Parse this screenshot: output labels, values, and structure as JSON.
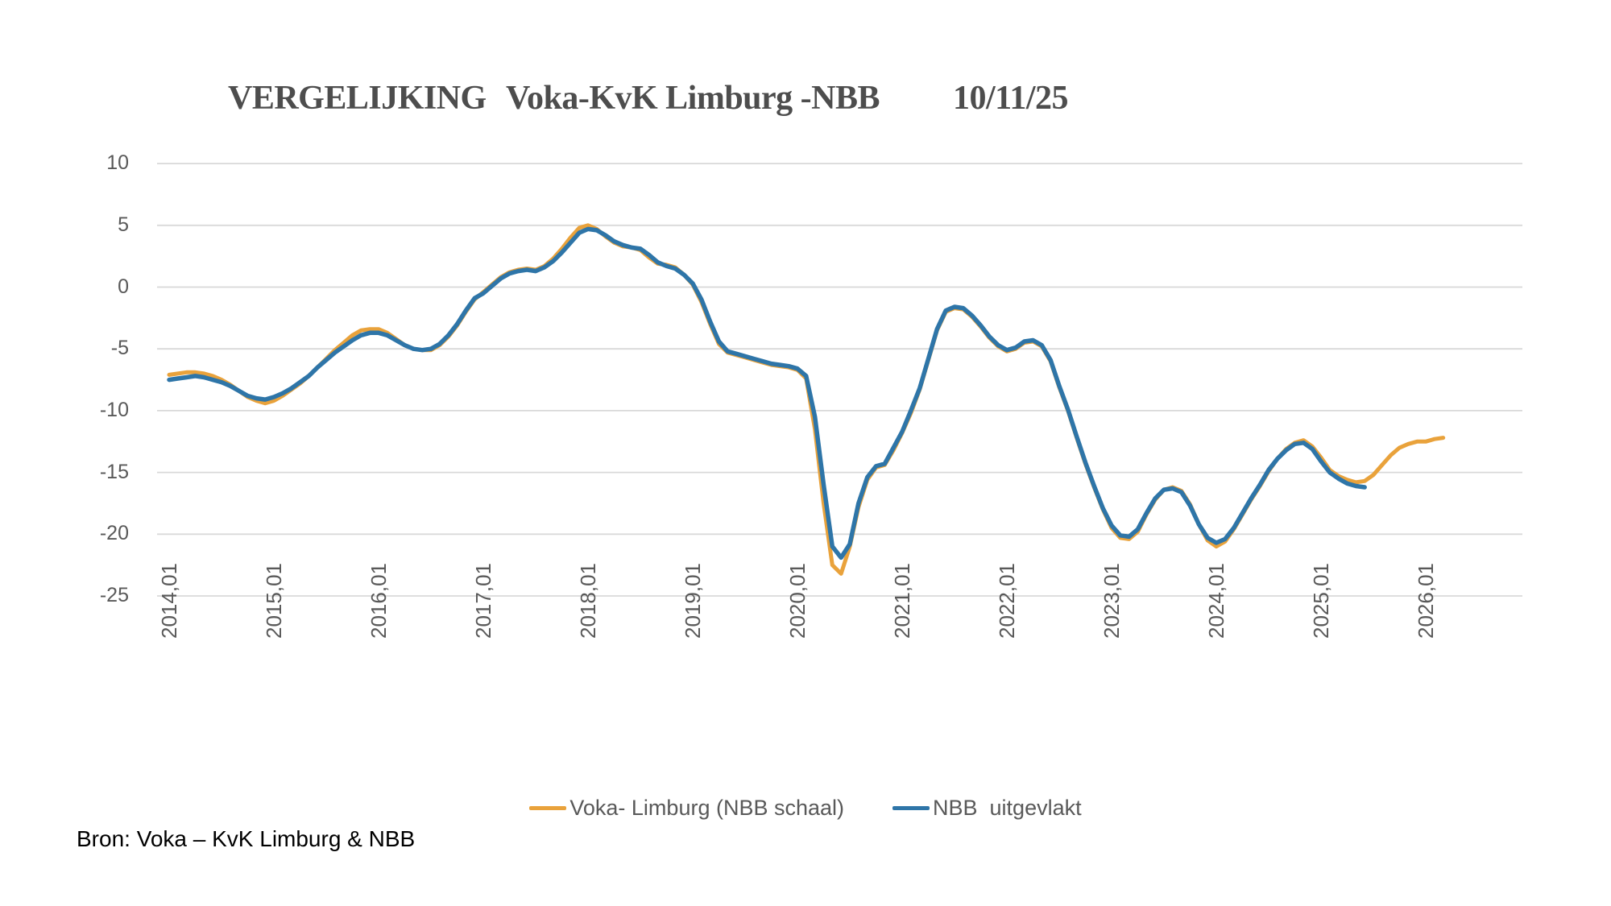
{
  "title": {
    "part1": "VERGELIJKING",
    "part2": "Voka-KvK Limburg -NBB",
    "part3": "10/11/25"
  },
  "source_note": "Bron: Voka – KvK Limburg & NBB",
  "legend": {
    "items": [
      {
        "label": "Voka- Limburg (NBB schaal)",
        "color": "#E9A23B"
      },
      {
        "label": "NBB  uitgevlakt",
        "color": "#2E75A8"
      }
    ]
  },
  "axes": {
    "y_tick_labels": [
      "10",
      "5",
      "0",
      "-5",
      "-10",
      "-15",
      "-20",
      "-25"
    ],
    "y_tick_values": [
      10,
      5,
      0,
      -5,
      -10,
      -15,
      -20,
      -25
    ],
    "x_tick_labels": [
      "2014,01",
      "2015,01",
      "2016,01",
      "2017,01",
      "2018,01",
      "2019,01",
      "2020,01",
      "2021,01",
      "2022,01",
      "2023,01",
      "2024,01",
      "2025,01",
      "2026,01"
    ],
    "x_tick_years": [
      2014,
      2015,
      2016,
      2017,
      2018,
      2019,
      2020,
      2021,
      2022,
      2023,
      2024,
      2025,
      2026
    ]
  },
  "chart_data": {
    "type": "line",
    "title": "VERGELIJKING Voka-KvK Limburg -NBB 10/11/25",
    "xlabel": "",
    "ylabel": "",
    "ylim": [
      -25,
      10
    ],
    "grid": true,
    "legend_position": "bottom",
    "x_start": "2014,01",
    "x_step_months": 1,
    "x_tick_labels": [
      "2014,01",
      "2015,01",
      "2016,01",
      "2017,01",
      "2018,01",
      "2019,01",
      "2020,01",
      "2021,01",
      "2022,01",
      "2023,01",
      "2024,01",
      "2025,01",
      "2026,01"
    ],
    "series": [
      {
        "name": "Voka- Limburg (NBB schaal)",
        "color": "#E9A23B",
        "start": "2014,01",
        "end": "2026,03",
        "values": [
          -7.1,
          -7.0,
          -6.9,
          -6.9,
          -7.0,
          -7.2,
          -7.5,
          -7.9,
          -8.4,
          -8.9,
          -9.2,
          -9.4,
          -9.2,
          -8.8,
          -8.3,
          -7.8,
          -7.2,
          -6.5,
          -5.8,
          -5.1,
          -4.5,
          -3.9,
          -3.5,
          -3.4,
          -3.4,
          -3.7,
          -4.2,
          -4.7,
          -5.0,
          -5.1,
          -5.1,
          -4.7,
          -4.0,
          -3.1,
          -2.0,
          -1.0,
          -0.4,
          0.2,
          0.8,
          1.2,
          1.4,
          1.5,
          1.4,
          1.7,
          2.3,
          3.1,
          4.0,
          4.8,
          5.0,
          4.7,
          4.1,
          3.6,
          3.3,
          3.2,
          3.0,
          2.4,
          1.9,
          1.8,
          1.6,
          1.0,
          0.2,
          -1.2,
          -3.0,
          -4.6,
          -5.3,
          -5.5,
          -5.7,
          -5.9,
          -6.1,
          -6.3,
          -6.4,
          -6.5,
          -6.7,
          -7.4,
          -11.5,
          -17.5,
          -22.5,
          -23.2,
          -21.0,
          -17.8,
          -15.6,
          -14.6,
          -14.4,
          -13.2,
          -11.8,
          -10.2,
          -8.3,
          -5.9,
          -3.5,
          -2.0,
          -1.7,
          -1.8,
          -2.4,
          -3.2,
          -4.1,
          -4.8,
          -5.2,
          -5.0,
          -4.5,
          -4.4,
          -4.8,
          -6.0,
          -8.1,
          -10.0,
          -12.2,
          -14.3,
          -16.2,
          -18.0,
          -19.5,
          -20.3,
          -20.4,
          -19.8,
          -18.4,
          -17.2,
          -16.4,
          -16.2,
          -16.5,
          -17.6,
          -19.2,
          -20.5,
          -21.0,
          -20.6,
          -19.6,
          -18.4,
          -17.2,
          -16.1,
          -14.9,
          -13.9,
          -13.1,
          -12.6,
          -12.4,
          -12.9,
          -13.8,
          -14.8,
          -15.3,
          -15.6,
          -15.8,
          -15.7,
          -15.2,
          -14.4,
          -13.6,
          -13.0,
          -12.7,
          -12.5,
          -12.5,
          -12.3,
          -12.2
        ]
      },
      {
        "name": "NBB  uitgevlakt",
        "color": "#2E75A8",
        "start": "2014,01",
        "end": "2025,06",
        "values": [
          -7.5,
          -7.4,
          -7.3,
          -7.2,
          -7.3,
          -7.5,
          -7.7,
          -8.0,
          -8.4,
          -8.8,
          -9.0,
          -9.1,
          -8.9,
          -8.6,
          -8.2,
          -7.7,
          -7.2,
          -6.5,
          -5.9,
          -5.3,
          -4.8,
          -4.3,
          -3.9,
          -3.7,
          -3.7,
          -3.9,
          -4.3,
          -4.7,
          -5.0,
          -5.1,
          -5.0,
          -4.6,
          -3.9,
          -3.0,
          -1.9,
          -0.9,
          -0.5,
          0.1,
          0.7,
          1.1,
          1.3,
          1.4,
          1.3,
          1.6,
          2.1,
          2.8,
          3.6,
          4.4,
          4.7,
          4.6,
          4.2,
          3.7,
          3.4,
          3.2,
          3.1,
          2.6,
          2.0,
          1.7,
          1.5,
          1.0,
          0.3,
          -1.0,
          -2.8,
          -4.4,
          -5.2,
          -5.4,
          -5.6,
          -5.8,
          -6.0,
          -6.2,
          -6.3,
          -6.4,
          -6.6,
          -7.2,
          -10.5,
          -16.0,
          -21.0,
          -21.9,
          -20.8,
          -17.5,
          -15.4,
          -14.5,
          -14.3,
          -13.0,
          -11.7,
          -10.0,
          -8.2,
          -5.8,
          -3.4,
          -1.9,
          -1.6,
          -1.7,
          -2.3,
          -3.1,
          -4.0,
          -4.7,
          -5.1,
          -4.9,
          -4.4,
          -4.3,
          -4.7,
          -5.9,
          -8.0,
          -9.9,
          -12.1,
          -14.2,
          -16.1,
          -17.9,
          -19.3,
          -20.1,
          -20.2,
          -19.6,
          -18.3,
          -17.1,
          -16.4,
          -16.3,
          -16.6,
          -17.7,
          -19.2,
          -20.3,
          -20.7,
          -20.4,
          -19.5,
          -18.3,
          -17.1,
          -16.0,
          -14.8,
          -13.9,
          -13.2,
          -12.7,
          -12.6,
          -13.1,
          -14.1,
          -15.0,
          -15.5,
          -15.9,
          -16.1,
          -16.2
        ]
      }
    ]
  }
}
